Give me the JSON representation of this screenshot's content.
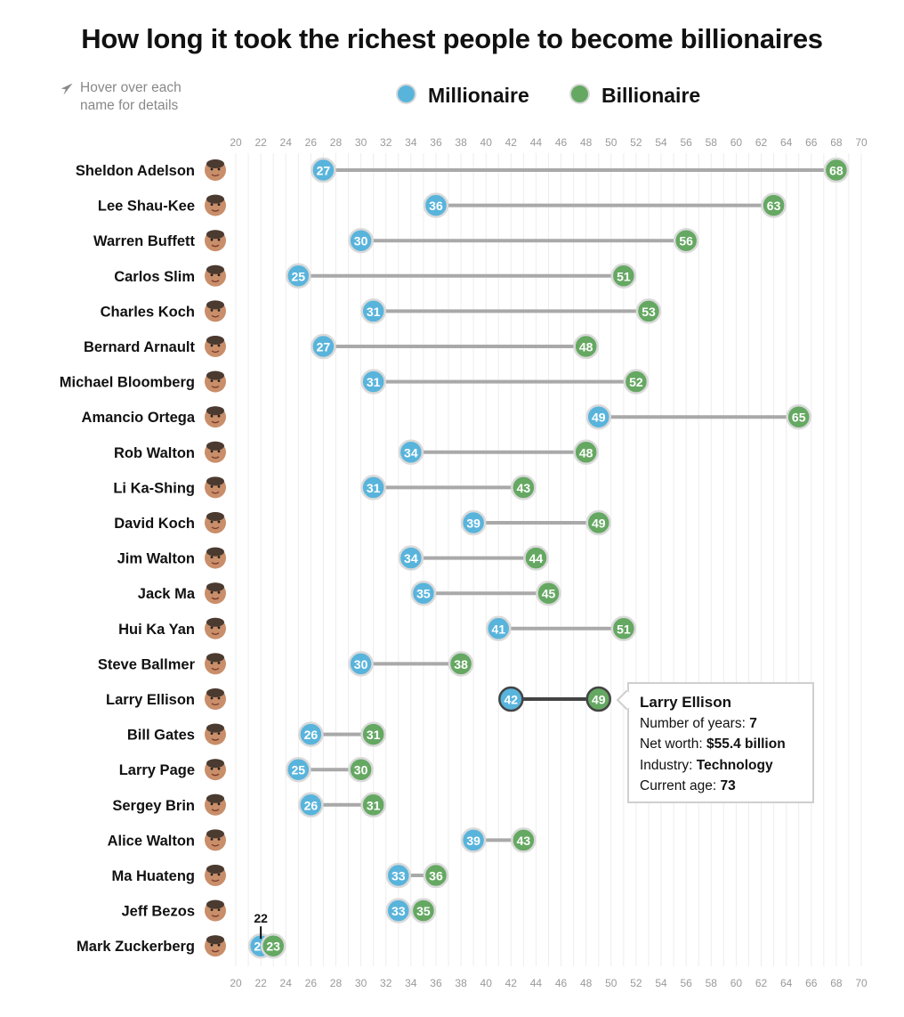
{
  "title": "How long it took the richest people to become billionaires",
  "hint": "Hover over each name for details",
  "legend": {
    "millionaire": {
      "label": "Millionaire",
      "color": "#59b4dc"
    },
    "billionaire": {
      "label": "Billionaire",
      "color": "#65a862"
    }
  },
  "tooltip": {
    "name": "Larry Ellison",
    "years_label": "Number of years:",
    "years_value": "7",
    "networth_label": "Net worth:",
    "networth_value": "$55.4 billion",
    "industry_label": "Industry:",
    "industry_value": "Technology",
    "age_label": "Current age:",
    "age_value": "73"
  },
  "chart_data": {
    "type": "dumbbell",
    "title": "How long it took the richest people to become billionaires",
    "xlim": [
      20,
      70
    ],
    "x_ticks": [
      20,
      22,
      24,
      26,
      28,
      30,
      32,
      34,
      36,
      38,
      40,
      42,
      44,
      46,
      48,
      50,
      52,
      54,
      56,
      58,
      60,
      62,
      64,
      66,
      68,
      70
    ],
    "series": [
      {
        "name": "Millionaire",
        "color": "#59b4dc"
      },
      {
        "name": "Billionaire",
        "color": "#65a862"
      }
    ],
    "highlighted": "Larry Ellison",
    "annotation": {
      "person": "Mark Zuckerberg",
      "text": "22"
    },
    "people": [
      {
        "name": "Sheldon Adelson",
        "millionaire": 27,
        "billionaire": 68
      },
      {
        "name": "Lee Shau-Kee",
        "millionaire": 36,
        "billionaire": 63
      },
      {
        "name": "Warren Buffett",
        "millionaire": 30,
        "billionaire": 56
      },
      {
        "name": "Carlos Slim",
        "millionaire": 25,
        "billionaire": 51
      },
      {
        "name": "Charles Koch",
        "millionaire": 31,
        "billionaire": 53
      },
      {
        "name": "Bernard Arnault",
        "millionaire": 27,
        "billionaire": 48
      },
      {
        "name": "Michael Bloomberg",
        "millionaire": 31,
        "billionaire": 52
      },
      {
        "name": "Amancio Ortega",
        "millionaire": 49,
        "billionaire": 65
      },
      {
        "name": "Rob Walton",
        "millionaire": 34,
        "billionaire": 48
      },
      {
        "name": "Li Ka-Shing",
        "millionaire": 31,
        "billionaire": 43
      },
      {
        "name": "David Koch",
        "millionaire": 39,
        "billionaire": 49
      },
      {
        "name": "Jim Walton",
        "millionaire": 34,
        "billionaire": 44
      },
      {
        "name": "Jack Ma",
        "millionaire": 35,
        "billionaire": 45
      },
      {
        "name": "Hui Ka Yan",
        "millionaire": 41,
        "billionaire": 51
      },
      {
        "name": "Steve Ballmer",
        "millionaire": 30,
        "billionaire": 38
      },
      {
        "name": "Larry Ellison",
        "millionaire": 42,
        "billionaire": 49
      },
      {
        "name": "Bill Gates",
        "millionaire": 26,
        "billionaire": 31
      },
      {
        "name": "Larry Page",
        "millionaire": 25,
        "billionaire": 30
      },
      {
        "name": "Sergey Brin",
        "millionaire": 26,
        "billionaire": 31
      },
      {
        "name": "Alice Walton",
        "millionaire": 39,
        "billionaire": 43
      },
      {
        "name": "Ma Huateng",
        "millionaire": 33,
        "billionaire": 36
      },
      {
        "name": "Jeff Bezos",
        "millionaire": 33,
        "billionaire": 35
      },
      {
        "name": "Mark Zuckerberg",
        "millionaire": 22,
        "billionaire": 23
      }
    ]
  }
}
